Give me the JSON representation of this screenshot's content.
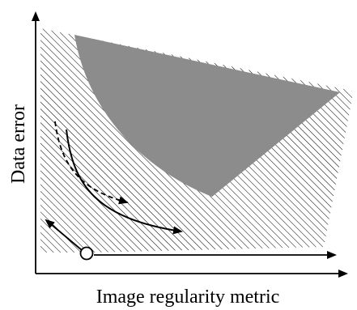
{
  "diagram": {
    "y_axis_label": "Data error",
    "x_axis_label": "Image regularity metric"
  },
  "colors": {
    "ink": "#000000",
    "dark_region": "#8c8c8c",
    "background": "#ffffff"
  }
}
